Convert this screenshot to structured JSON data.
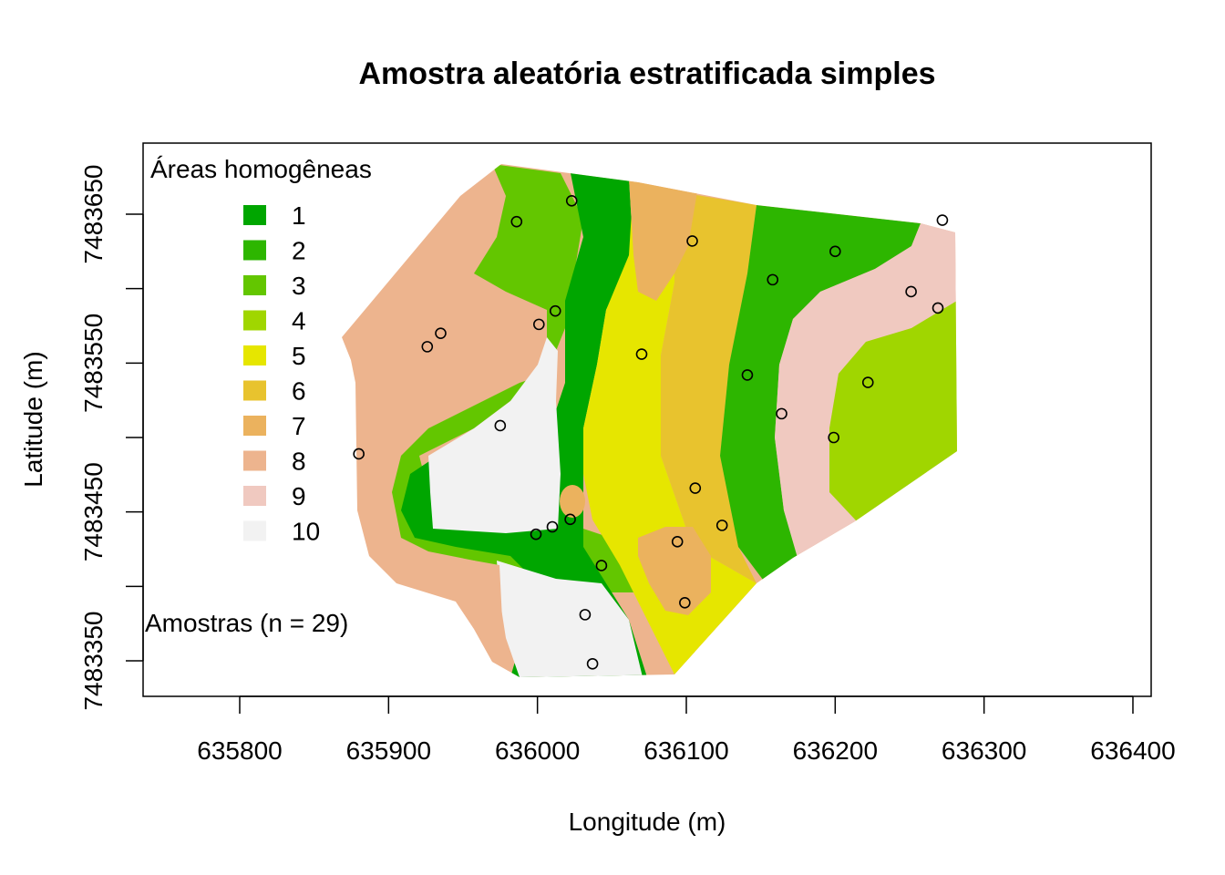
{
  "chart_data": {
    "type": "map",
    "title": "Amostra aleatória estratificada simples",
    "xlabel": "Longitude (m)",
    "ylabel": "Latitude (m)",
    "xlim": [
      635740,
      636405
    ],
    "ylim": [
      7483328,
      7483700
    ],
    "x_ticks": [
      635800,
      635900,
      636000,
      636100,
      636200,
      636300,
      636400
    ],
    "y_ticks": [
      7483350,
      7483400,
      7483450,
      7483500,
      7483550,
      7483600,
      7483650
    ],
    "y_tick_labels": [
      "7483350",
      "",
      "7483450",
      "",
      "7483550",
      "",
      "7483650"
    ],
    "legend": {
      "title": "Áreas homogêneas",
      "placement": "top-left",
      "classes": [
        {
          "label": "1",
          "color": "#00A600"
        },
        {
          "label": "2",
          "color": "#2DB600"
        },
        {
          "label": "3",
          "color": "#63C600"
        },
        {
          "label": "4",
          "color": "#A0D600"
        },
        {
          "label": "5",
          "color": "#E6E600"
        },
        {
          "label": "6",
          "color": "#E8C32E"
        },
        {
          "label": "7",
          "color": "#EBB25E"
        },
        {
          "label": "8",
          "color": "#EDB48E"
        },
        {
          "label": "9",
          "color": "#F0C9C0"
        },
        {
          "label": "10",
          "color": "#F2F2F2"
        }
      ]
    },
    "samples_label": "Amostras (n = 29)",
    "samples": [
      [
        636023,
        7483659
      ],
      [
        635986,
        7483645
      ],
      [
        636104,
        7483632
      ],
      [
        636200,
        7483625
      ],
      [
        636272,
        7483646
      ],
      [
        636158,
        7483606
      ],
      [
        636251,
        7483598
      ],
      [
        636269,
        7483587
      ],
      [
        636012,
        7483585
      ],
      [
        636001,
        7483576
      ],
      [
        635935,
        7483570
      ],
      [
        635926,
        7483561
      ],
      [
        636070,
        7483556
      ],
      [
        636141,
        7483542
      ],
      [
        636222,
        7483537
      ],
      [
        636164,
        7483516
      ],
      [
        635975,
        7483508
      ],
      [
        636199,
        7483500
      ],
      [
        635880,
        7483489
      ],
      [
        636106,
        7483466
      ],
      [
        636022,
        7483445
      ],
      [
        636124,
        7483441
      ],
      [
        636010,
        7483440
      ],
      [
        635999,
        7483435
      ],
      [
        636094,
        7483430
      ],
      [
        636043,
        7483414
      ],
      [
        636099,
        7483389
      ],
      [
        636032,
        7483381
      ],
      [
        636037,
        7483348
      ]
    ]
  }
}
